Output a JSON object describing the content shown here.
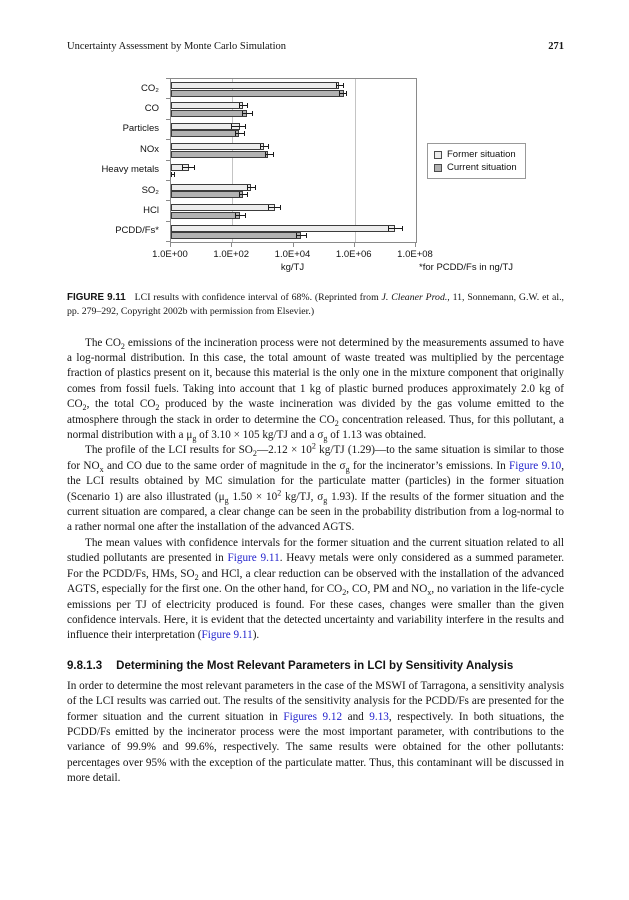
{
  "page": {
    "header": {
      "running_title": "Uncertainty Assessment by Monte Carlo Simulation",
      "page_number": "271"
    },
    "figure": {
      "caption_label": "FIGURE 9.11",
      "caption_html": "LCI results with confidence interval of 68%. (Reprinted from <i>J. Cleaner Prod.</i>, 11, Sonnemann, G.W. et al., pp. 279–292, Copyright 2002b with permission from Elsevier.)"
    },
    "paragraphs_top": [
      "The CO<sub>2</sub> emissions of the incineration process were not determined by the measurements assumed to have a log-normal distribution. In this case, the total amount of waste treated was multiplied by the percentage fraction of plastics present on it, because this material is the only one in the mixture component that originally comes from fossil fuels. Taking into account that 1 kg of plastic burned produces approximately 2.0 kg of CO<sub>2</sub>, the total CO<sub>2</sub> produced by the waste incineration was divided by the gas volume emitted to the atmosphere through the stack in order to determine the CO<sub>2</sub> concentration released. Thus, for this pollutant, a normal distribution with a μ<sub>g</sub> of 3.10 × 105 kg/TJ and a σ<sub>g</sub> of 1.13 was obtained.",
      "The profile of the LCI results for SO<sub>2</sub>—2.12 × 10<sup>2</sup> kg/TJ (1.29)—to the same situation is similar to those for NO<sub>x</sub> and CO due to the same order of magnitude in the σ<sub>g</sub> for the incinerator’s emissions. In <span class=\"link\" data-name=\"figure-9-10-link\" data-interactable=\"true\">Figure 9.10</span>, the LCI results obtained by MC simulation for the particulate matter (particles) in the former situation (Scenario 1) are also illustrated (μ<sub>g</sub> 1.50 × 10<sup>2</sup> kg/TJ, σ<sub>g</sub> 1.93). If the results of the former situation and the current situation are compared, a clear change can be seen in the probability distribution from a log-normal to a rather normal one after the installation of the advanced AGTS.",
      "The mean values with confidence intervals for the former situation and the current situation related to all studied pollutants are presented in <span class=\"link\" data-name=\"figure-9-11-link\" data-interactable=\"true\">Figure 9.11</span>. Heavy metals were only considered as a summed parameter. For the PCDD/Fs, HMs, SO<sub>2</sub> and HCl, a clear reduction can be observed with the installation of the advanced AGTS, especially for the first one. On the other hand, for CO<sub>2</sub>, CO, PM and NO<sub>x</sub>, no variation in the life-cycle emissions per TJ of electricity produced is found. For these cases, changes were smaller than the given confidence intervals. Here, it is evident that the detected uncertainty and variability interfere in the results and influence their interpretation (<span class=\"link\" data-name=\"figure-9-11-link-2\" data-interactable=\"true\">Figure 9.11</span>)."
    ],
    "heading": {
      "number": "9.8.1.3",
      "title": "Determining the Most Relevant Parameters in LCI by Sensitivity Analysis"
    },
    "paragraph_after_heading": "In order to determine the most relevant parameters in the case of the MSWI of Tarragona, a sensitivity analysis of the LCI results was carried out. The results of the sensitivity analysis for the PCDD/Fs are presented for the former situation and the current situation in <span class=\"link\" data-name=\"figures-9-12-link\" data-interactable=\"true\">Figures 9.12</span> and <span class=\"link\" data-name=\"figure-9-13-link\" data-interactable=\"true\">9.13</span>, respectively. In both situations, the PCDD/Fs emitted by the incinerator process were the most important parameter, with contributions to the variance of 99.9% and 99.6%, respectively. The same results were obtained for the other pollutants: percentages over 95% with the exception of the particulate matter. Thus, this contaminant will be discussed in more detail."
  },
  "chart_data": {
    "type": "bar",
    "orientation": "horizontal",
    "categories": [
      "CO₂",
      "CO",
      "Particles",
      "NOx",
      "Heavy metals",
      "SO₂",
      "HCl",
      "PCDD/Fs*"
    ],
    "series": [
      {
        "name": "Former situation",
        "color": "#ececec",
        "values": [
          310000.0,
          230.0,
          180.0,
          1100.0,
          4.0,
          410.0,
          2400.0,
          21000000.0
        ],
        "err_lo": [
          240000.0,
          160.0,
          88.0,
          820.0,
          2.3,
          300.0,
          1500.0,
          12000000.0
        ],
        "err_hi": [
          400000.0,
          310.0,
          270.0,
          1500.0,
          5.6,
          550.0,
          3700.0,
          35000000.0
        ]
      },
      {
        "name": "Current situation",
        "color": "#b2b2b2",
        "values": [
          450000.0,
          300.0,
          170.0,
          1500.0,
          1.05,
          220.0,
          180.0,
          18000.0
        ],
        "err_lo": [
          310000.0,
          210.0,
          125.0,
          1150.0,
          1.0,
          170.0,
          120.0,
          12000.0
        ],
        "err_hi": [
          520000.0,
          440.0,
          240.0,
          2100.0,
          1.3,
          300.0,
          260.0,
          26000.0
        ]
      }
    ],
    "x_axis": {
      "scale": "log",
      "min": 1,
      "max": 100000000.0,
      "tick_values": [
        1,
        100,
        10000,
        1000000,
        100000000
      ],
      "tick_labels": [
        "1.0E+00",
        "1.0E+02",
        "1.0E+04",
        "1.0E+06",
        "1.0E+08"
      ],
      "gridline_values": [
        100,
        1000000
      ],
      "label": "kg/TJ"
    },
    "footnote": "*for PCDD/Fs in ng/TJ",
    "legend": {
      "position": "right",
      "entries": [
        "Former situation",
        "Current situation"
      ]
    },
    "error_bars": "68% confidence interval"
  },
  "colors": {
    "link_blue": "#2323cc",
    "text": "#141414",
    "bar_former": "#ececec",
    "bar_current": "#b2b2b2",
    "bar_border": "#3c3c3c",
    "plot_frame": "#8a8a8a",
    "gridline": "#c4c4c4"
  }
}
